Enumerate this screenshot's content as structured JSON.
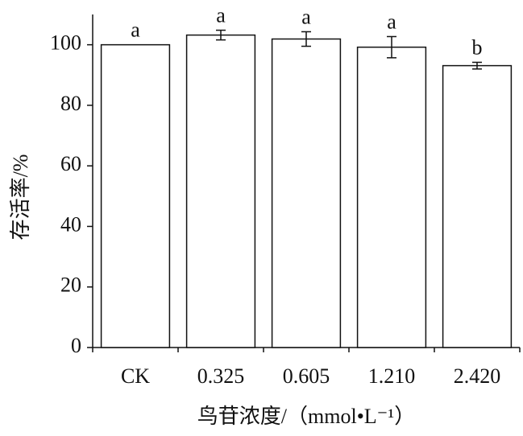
{
  "chart_data": {
    "type": "bar",
    "categories": [
      "CK",
      "0.325",
      "0.605",
      "1.210",
      "2.420"
    ],
    "values": [
      100,
      103.2,
      101.9,
      99.2,
      93.1
    ],
    "errors": [
      0,
      1.6,
      2.4,
      3.5,
      1.1
    ],
    "letters": [
      "a",
      "a",
      "a",
      "a",
      "b"
    ],
    "color": "#ffffff",
    "ylim": [
      0,
      110
    ],
    "yticks": [
      0,
      20,
      40,
      60,
      80,
      100
    ],
    "xlabel": "鸟苷浓度/（mmol•L⁻¹）",
    "ylabel": "存活率/%",
    "grid": false
  }
}
